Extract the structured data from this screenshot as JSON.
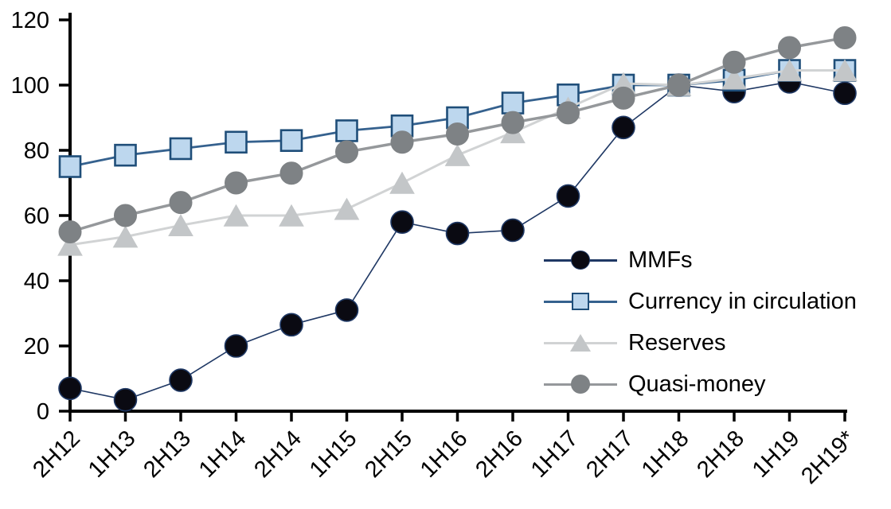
{
  "chart_data": {
    "type": "line",
    "title": "",
    "xlabel": "",
    "ylabel": "",
    "categories": [
      "2H12",
      "1H13",
      "2H13",
      "1H14",
      "2H14",
      "1H15",
      "2H15",
      "1H16",
      "2H16",
      "1H17",
      "2H17",
      "1H18",
      "2H18",
      "1H19",
      "2H19*"
    ],
    "series": [
      {
        "name": "MMFs",
        "marker": "circle",
        "marker_fill": "#0a0a12",
        "marker_edge": "#1f3864",
        "line_color": "#1f3864",
        "line_width": 1.6,
        "marker_size": 28,
        "values": [
          7,
          3.5,
          9.5,
          20,
          26.5,
          31,
          58,
          54.5,
          55.5,
          66,
          87,
          100,
          98,
          101,
          97.5
        ]
      },
      {
        "name": "Currency in circulation",
        "marker": "square",
        "marker_fill": "#bdd7ee",
        "marker_edge": "#1f4e79",
        "line_color": "#35618e",
        "line_width": 2.8,
        "marker_size": 26,
        "values": [
          75,
          78.5,
          80.5,
          82.5,
          83,
          86,
          87.5,
          90,
          94.5,
          97,
          100,
          100,
          101.5,
          104.5,
          104.5
        ]
      },
      {
        "name": "Reserves",
        "marker": "triangle",
        "marker_fill": "#c3c6c8",
        "marker_edge": "#c3c6c8",
        "line_color": "#d1d3d4",
        "line_width": 3,
        "marker_size": 30,
        "values": [
          51,
          53.5,
          57,
          60,
          60,
          62,
          70,
          78.5,
          85.5,
          93,
          100.5,
          100,
          102,
          104.5,
          104.5
        ]
      },
      {
        "name": "Quasi-money",
        "marker": "circle",
        "marker_fill": "#7e8285",
        "marker_edge": "#7e8285",
        "line_color": "#95989b",
        "line_width": 3.5,
        "marker_size": 28,
        "values": [
          55,
          60,
          64,
          70,
          73,
          79.5,
          82.5,
          85,
          88.5,
          91.5,
          96,
          100,
          107,
          111.5,
          114.5
        ]
      }
    ],
    "ylim": [
      0,
      120
    ],
    "yticks": [
      0,
      20,
      40,
      60,
      80,
      100,
      120
    ],
    "grid": false,
    "legend_position": "inside-right",
    "axis_color": "#000000",
    "background": "#ffffff"
  }
}
